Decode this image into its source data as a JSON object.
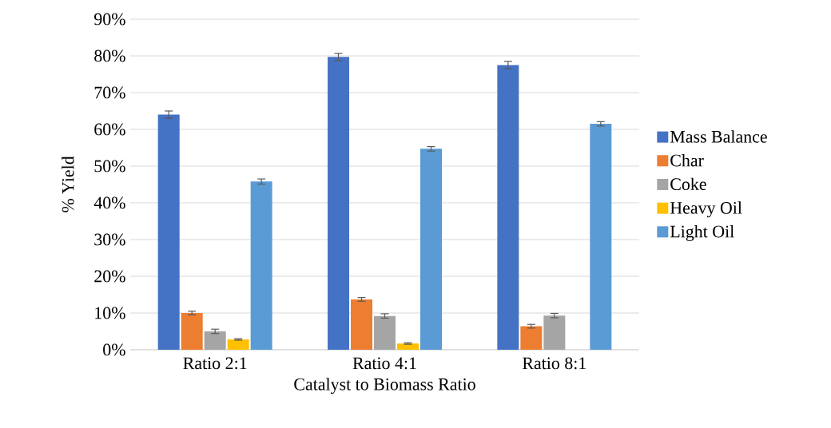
{
  "chart_data": {
    "type": "bar",
    "xlabel": "Catalyst to Biomass Ratio",
    "ylabel": "% Yield",
    "categories": [
      "Ratio 2:1",
      "Ratio 4:1",
      "Ratio 8:1"
    ],
    "series": [
      {
        "name": "Mass Balance",
        "color": "#4472c4",
        "values": [
          64.0,
          79.7,
          77.5
        ],
        "errors": [
          1.0,
          1.0,
          1.0
        ]
      },
      {
        "name": "Char",
        "color": "#ed7d31",
        "values": [
          10.0,
          13.7,
          6.4
        ],
        "errors": [
          0.5,
          0.5,
          0.5
        ]
      },
      {
        "name": "Coke",
        "color": "#a5a5a5",
        "values": [
          5.0,
          9.2,
          9.3
        ],
        "errors": [
          0.6,
          0.6,
          0.6
        ]
      },
      {
        "name": "Heavy Oil",
        "color": "#ffc000",
        "values": [
          2.8,
          1.7,
          0.0
        ],
        "errors": [
          0.2,
          0.2,
          null
        ]
      },
      {
        "name": "Light Oil",
        "color": "#5b9bd5",
        "values": [
          45.8,
          54.7,
          61.5
        ],
        "errors": [
          0.7,
          0.6,
          0.6
        ]
      }
    ],
    "ylim": [
      0,
      90
    ],
    "yticks": [
      {
        "value": 0,
        "label": "0%"
      },
      {
        "value": 10,
        "label": "10%"
      },
      {
        "value": 20,
        "label": "20%"
      },
      {
        "value": 30,
        "label": "30%"
      },
      {
        "value": 40,
        "label": "40%"
      },
      {
        "value": 50,
        "label": "50%"
      },
      {
        "value": 60,
        "label": "60%"
      },
      {
        "value": 70,
        "label": "70%"
      },
      {
        "value": 80,
        "label": "80%"
      },
      {
        "value": 90,
        "label": "90%"
      }
    ],
    "grid": "y",
    "legend": "right"
  }
}
